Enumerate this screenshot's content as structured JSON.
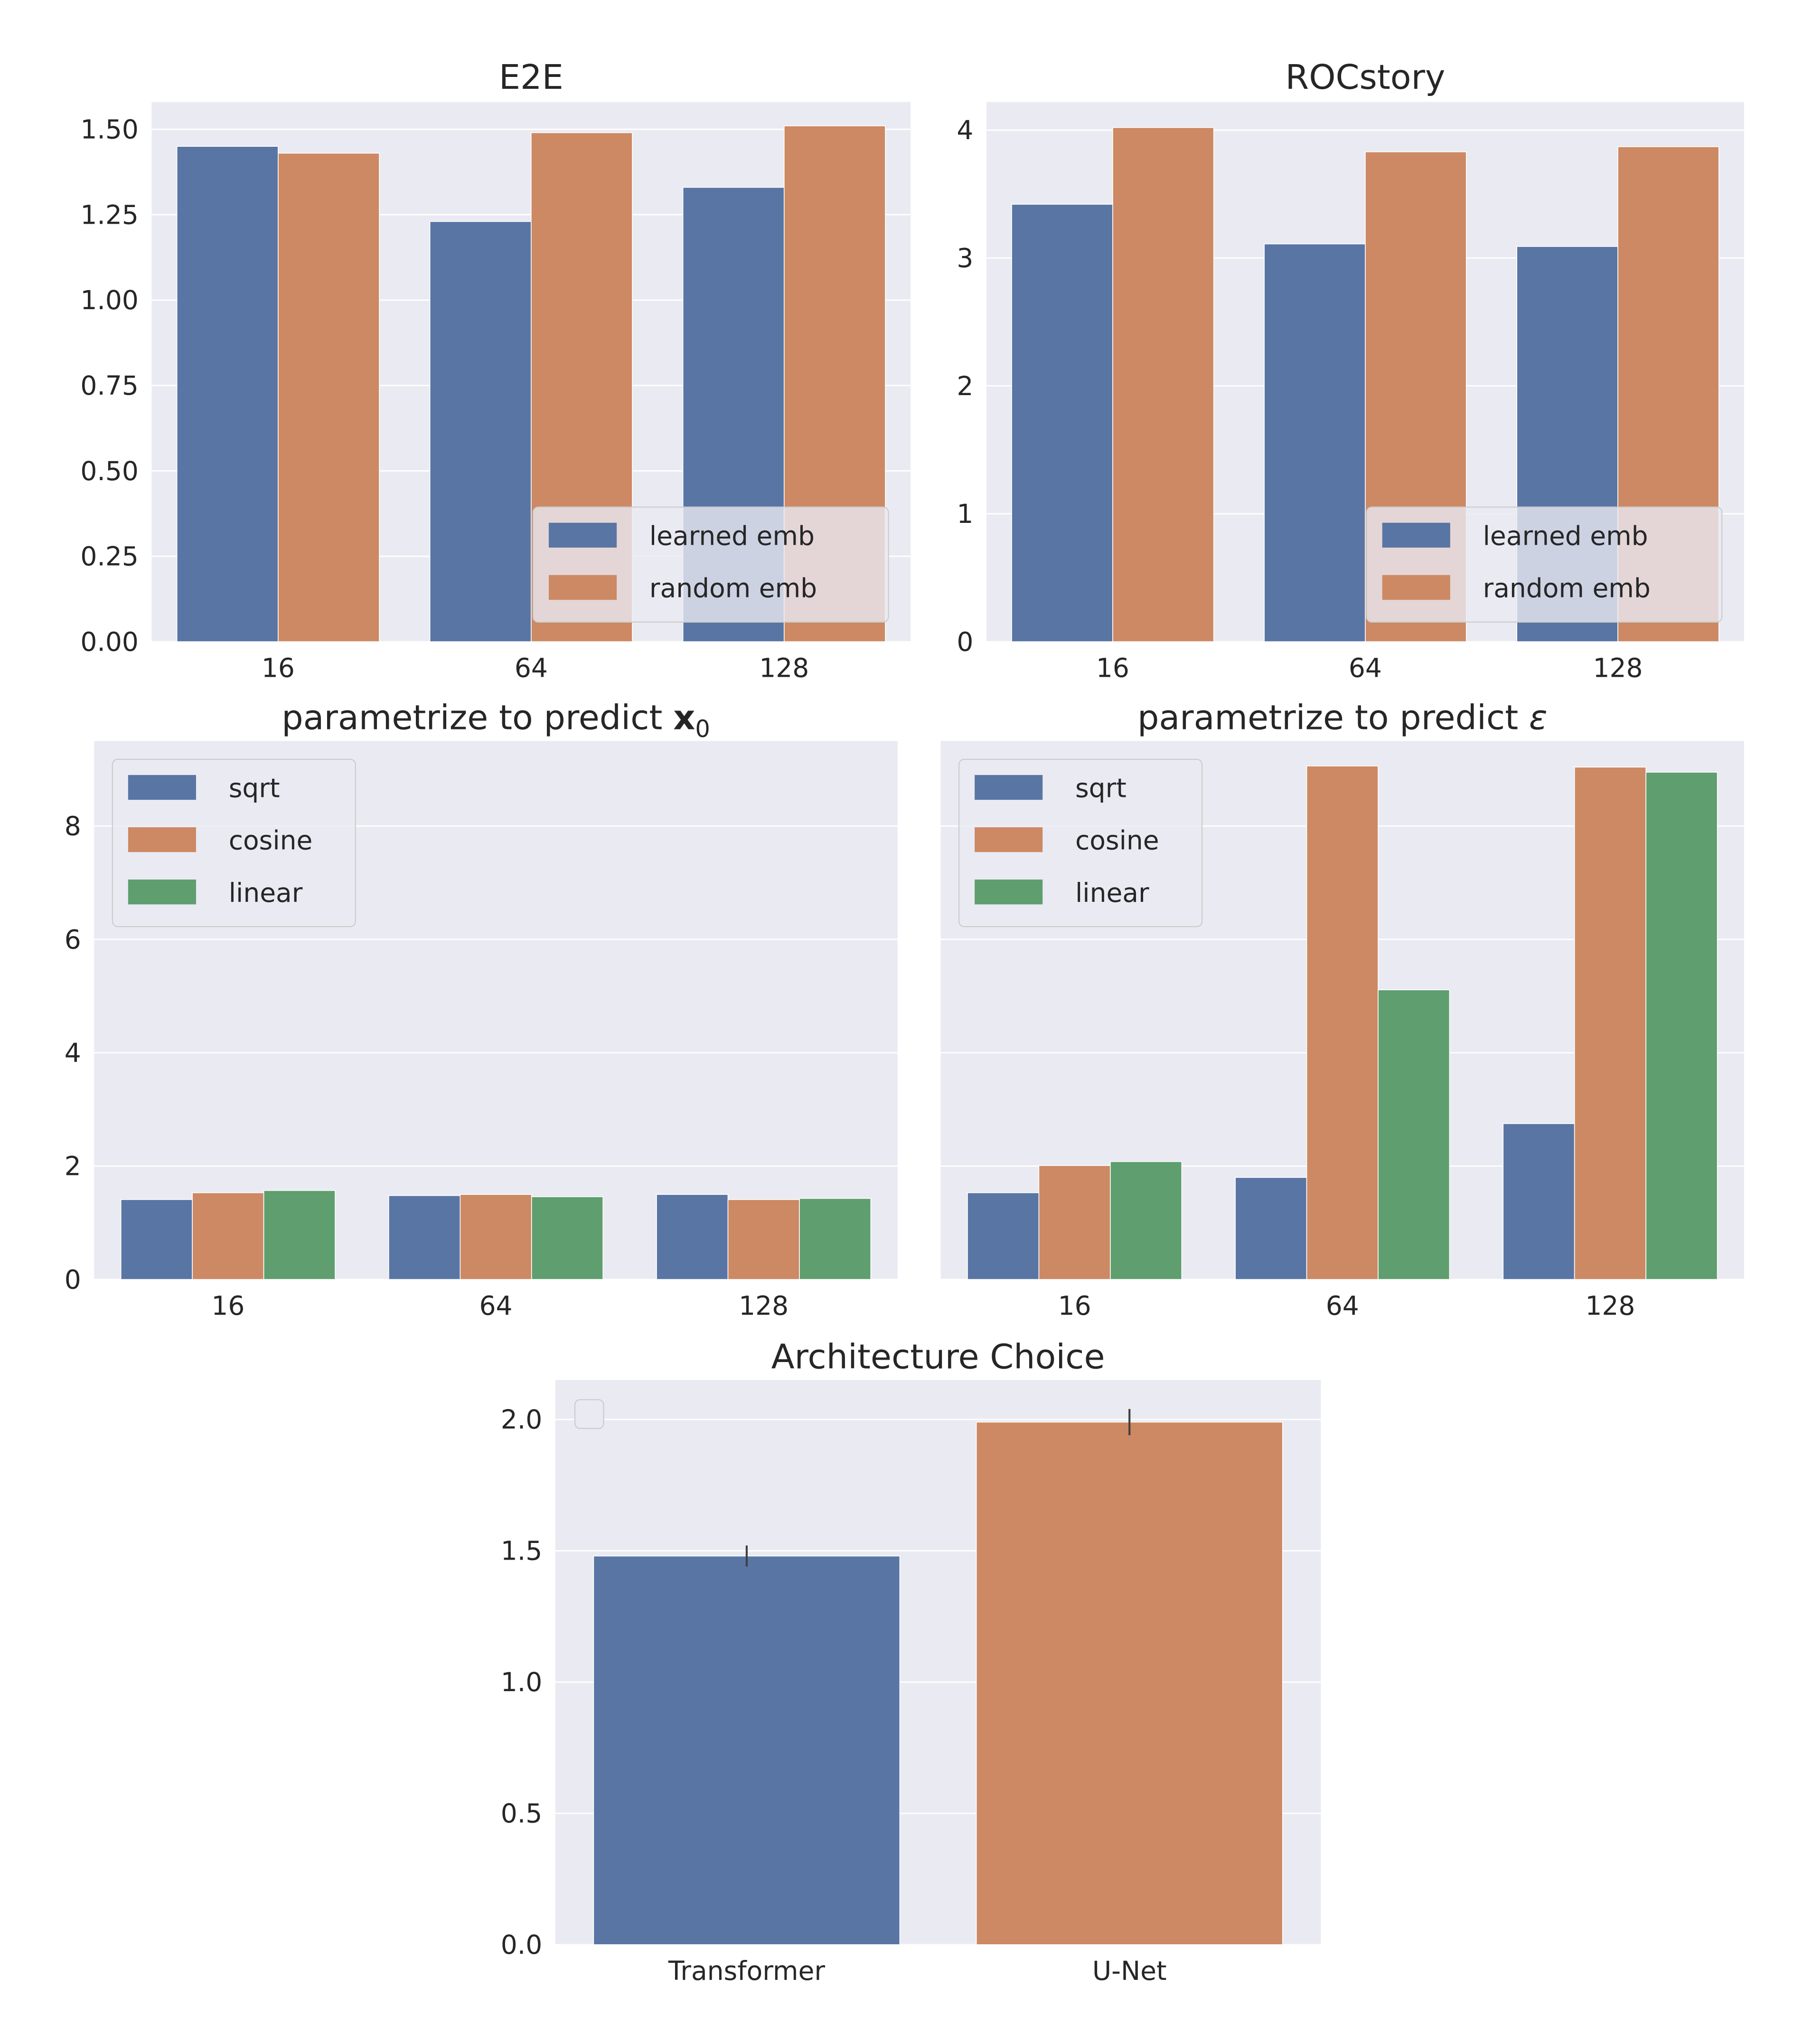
{
  "colors": {
    "background": "#eaeaf2",
    "grid": "#ffffff",
    "blue": "#5975a4",
    "orange": "#cc8963",
    "green": "#5f9e6e",
    "errorbar": "#3f3f3f"
  },
  "chart_data": [
    {
      "id": "e2e",
      "type": "bar",
      "title": "E2E",
      "categories": [
        "16",
        "64",
        "128"
      ],
      "ylim": [
        0,
        1.58
      ],
      "yticks": [
        0,
        0.25,
        0.5,
        0.75,
        1.0,
        1.25,
        1.5
      ],
      "ytick_labels": [
        "0.00",
        "0.25",
        "0.50",
        "0.75",
        "1.00",
        "1.25",
        "1.50"
      ],
      "grid": true,
      "legend": "lower-right",
      "series": [
        {
          "name": "learned emb",
          "color": "#5975a4",
          "values": [
            1.45,
            1.23,
            1.33
          ]
        },
        {
          "name": "random emb",
          "color": "#cc8963",
          "values": [
            1.43,
            1.49,
            1.51
          ]
        }
      ]
    },
    {
      "id": "roc",
      "type": "bar",
      "title": "ROCstory",
      "categories": [
        "16",
        "64",
        "128"
      ],
      "ylim": [
        0,
        4.22
      ],
      "yticks": [
        0,
        1,
        2,
        3,
        4
      ],
      "ytick_labels": [
        "0",
        "1",
        "2",
        "3",
        "4"
      ],
      "grid": true,
      "legend": "lower-right",
      "series": [
        {
          "name": "learned emb",
          "color": "#5975a4",
          "values": [
            3.42,
            3.11,
            3.09
          ]
        },
        {
          "name": "random emb",
          "color": "#cc8963",
          "values": [
            4.02,
            3.83,
            3.87
          ]
        }
      ]
    },
    {
      "id": "x0",
      "type": "bar",
      "title": "parametrize to predict ",
      "title_math": "x",
      "title_math_style": "bold",
      "title_sub": "0",
      "categories": [
        "16",
        "64",
        "128"
      ],
      "ylim": [
        0,
        9.5
      ],
      "yticks": [
        0,
        2,
        4,
        6,
        8
      ],
      "ytick_labels": [
        "0",
        "2",
        "4",
        "6",
        "8"
      ],
      "grid": true,
      "legend": "upper-left",
      "series": [
        {
          "name": "sqrt",
          "color": "#5975a4",
          "values": [
            1.41,
            1.48,
            1.5
          ]
        },
        {
          "name": "cosine",
          "color": "#cc8963",
          "values": [
            1.53,
            1.5,
            1.41
          ]
        },
        {
          "name": "linear",
          "color": "#5f9e6e",
          "values": [
            1.57,
            1.46,
            1.43
          ]
        }
      ]
    },
    {
      "id": "eps",
      "type": "bar",
      "title": "parametrize to predict ",
      "title_math": "ε",
      "title_math_style": "italic",
      "categories": [
        "16",
        "64",
        "128"
      ],
      "ylim": [
        0,
        9.5
      ],
      "yticks": [
        0,
        2,
        4,
        6,
        8
      ],
      "ytick_labels": [],
      "grid": true,
      "legend": "upper-left",
      "sharey": true,
      "series": [
        {
          "name": "sqrt",
          "color": "#5975a4",
          "values": [
            1.53,
            1.8,
            2.75
          ]
        },
        {
          "name": "cosine",
          "color": "#cc8963",
          "values": [
            2.01,
            9.06,
            9.04
          ]
        },
        {
          "name": "linear",
          "color": "#5f9e6e",
          "values": [
            2.08,
            5.11,
            8.95
          ]
        }
      ]
    },
    {
      "id": "arch",
      "type": "bar",
      "title": "Architecture Choice",
      "categories": [
        "Transformer",
        "U-Net"
      ],
      "ylim": [
        0,
        2.15
      ],
      "yticks": [
        0,
        0.5,
        1.0,
        1.5,
        2.0
      ],
      "ytick_labels": [
        "0.0",
        "0.5",
        "1.0",
        "1.5",
        "2.0"
      ],
      "grid": true,
      "legend": "upper-left (empty)",
      "series": [
        {
          "colors": [
            "#5975a4",
            "#cc8963"
          ],
          "values": [
            1.48,
            1.99
          ],
          "errors": [
            0.04,
            0.05
          ]
        }
      ]
    }
  ]
}
